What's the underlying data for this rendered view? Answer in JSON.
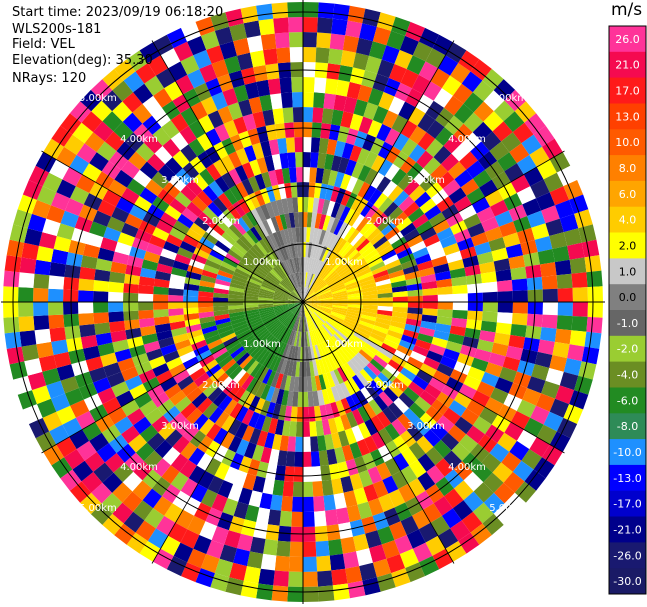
{
  "header": {
    "start_time": "Start time: 2023/09/19 06:18:20",
    "instrument": "WLS200s-181",
    "field": "Field: VEL",
    "elevation": "Elevation(deg): 35.30",
    "nrays": "NRays: 120"
  },
  "colorbar": {
    "unit": "m/s",
    "levels": [
      "26.0",
      "21.0",
      "17.0",
      "13.0",
      "10.0",
      "8.0",
      "6.0",
      "4.0",
      "2.0",
      "1.0",
      "0.0",
      "-1.0",
      "-2.0",
      "-4.0",
      "-6.0",
      "-8.0",
      "-10.0",
      "-13.0",
      "-17.0",
      "-21.0",
      "-26.0",
      "-30.0"
    ],
    "colors": [
      "#ff3399",
      "#f50a50",
      "#ff1a1a",
      "#ff4000",
      "#ff5a00",
      "#ff8000",
      "#ffa500",
      "#ffcc00",
      "#ffff00",
      "#c8c8c8",
      "#808080",
      "#666666",
      "#9acd32",
      "#6b8e23",
      "#228b22",
      "#2e8b57",
      "#1e90ff",
      "#0000ff",
      "#0000cd",
      "#00008b",
      "#191970",
      "#1a1a66"
    ]
  },
  "chart_data": {
    "type": "ppi",
    "field": "VEL",
    "units": "m/s",
    "nrays": 120,
    "range_rings": [
      "1.00km",
      "2.00km",
      "3.00km",
      "4.00km",
      "5.00km"
    ],
    "sectors": [
      {
        "azimuth_range_deg": [
          0,
          30
        ],
        "dominant_velocity_ms": 1.5
      },
      {
        "azimuth_range_deg": [
          30,
          120
        ],
        "dominant_velocity_ms": 4.5
      },
      {
        "azimuth_range_deg": [
          120,
          170
        ],
        "dominant_velocity_ms": 2.5
      },
      {
        "azimuth_range_deg": [
          170,
          200
        ],
        "dominant_velocity_ms": -0.5
      },
      {
        "azimuth_range_deg": [
          200,
          260
        ],
        "dominant_velocity_ms": -5.0
      },
      {
        "azimuth_range_deg": [
          260,
          330
        ],
        "dominant_velocity_ms": -2.5
      },
      {
        "azimuth_range_deg": [
          330,
          360
        ],
        "dominant_velocity_ms": 0.0
      }
    ],
    "valid_range_km": 1.45,
    "noise_beyond_km": 1.6
  }
}
